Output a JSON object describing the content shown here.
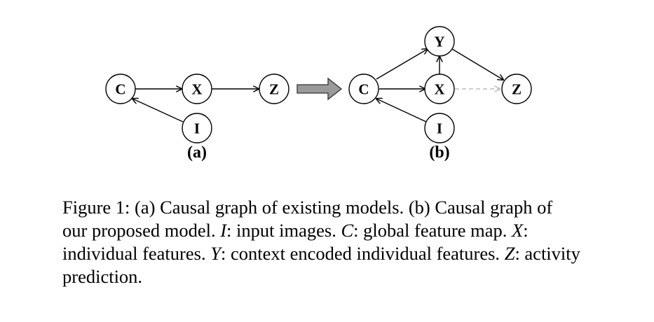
{
  "diagram": {
    "panel_a": {
      "label": "(a)",
      "nodes": {
        "C": "C",
        "X": "X",
        "Z": "Z",
        "I": "I"
      },
      "edges": [
        [
          "C",
          "X"
        ],
        [
          "X",
          "Z"
        ],
        [
          "I",
          "C"
        ]
      ]
    },
    "panel_b": {
      "label": "(b)",
      "nodes": {
        "C": "C",
        "X": "X",
        "Y": "Y",
        "Z": "Z",
        "I": "I"
      },
      "edges": [
        [
          "C",
          "X"
        ],
        [
          "C",
          "Y"
        ],
        [
          "X",
          "Y"
        ],
        [
          "Y",
          "Z"
        ],
        [
          "I",
          "C"
        ]
      ],
      "dashed_edges": [
        [
          "X",
          "Z"
        ]
      ]
    },
    "transition_arrow_color": "#9a9a9a",
    "dashed_edge_color": "#bdbdbd"
  },
  "caption": {
    "prefix": "Figure 1: (a) Causal graph of existing models. (b) Causal graph of our proposed model. ",
    "s1": "I",
    "t1": ": input images. ",
    "s2": "C",
    "t2": ": global feature map. ",
    "s3": "X",
    "t3": ": individual features. ",
    "s4": "Y",
    "t4": ": context encoded individual features. ",
    "s5": "Z",
    "t5": ": activity prediction."
  }
}
